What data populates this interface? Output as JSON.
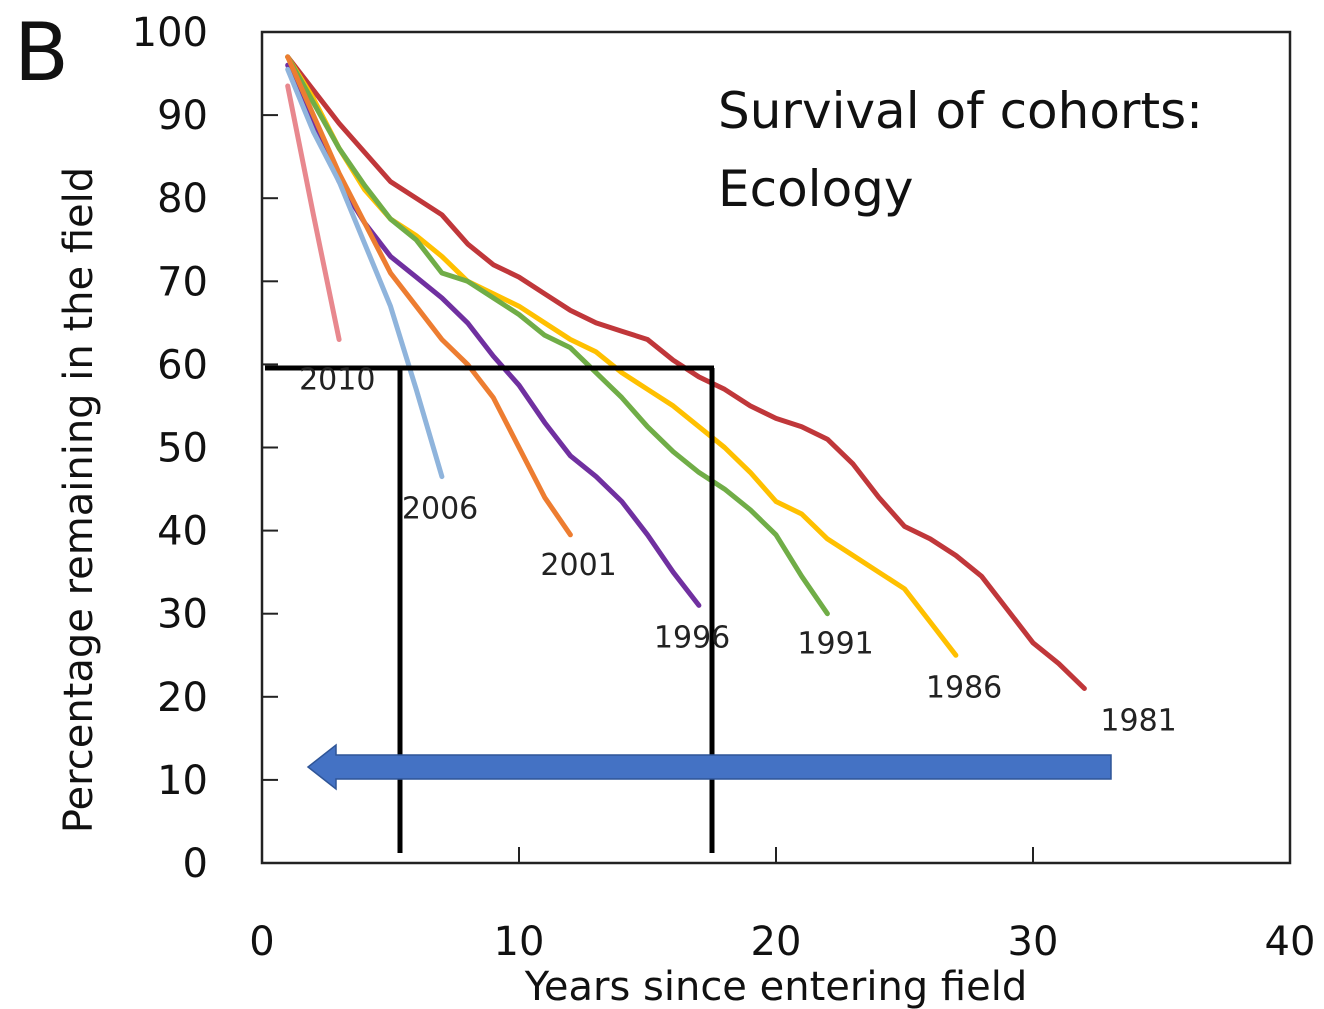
{
  "chart_data": {
    "type": "line",
    "panel_label": "B",
    "title": [
      "Survival of cohorts:",
      "Ecology"
    ],
    "xlabel": "Years since entering field",
    "ylabel": "Percentage remaining in the field",
    "xlim": [
      0,
      40
    ],
    "xticks": [
      0,
      10,
      20,
      30,
      40
    ],
    "ylim": [
      0,
      100
    ],
    "yticks": [
      0,
      10,
      20,
      30,
      40,
      50,
      60,
      70,
      80,
      90,
      100
    ],
    "grid": false,
    "series": [
      {
        "name": "1981",
        "color": "#c0373a",
        "x": [
          1,
          2,
          3,
          4,
          5,
          6,
          7,
          8,
          9,
          10,
          11,
          12,
          13,
          14,
          15,
          16,
          17,
          18,
          19,
          20,
          21,
          22,
          23,
          24,
          25,
          26,
          27,
          28,
          29,
          30,
          31,
          32
        ],
        "values": [
          97,
          93,
          89,
          85.5,
          82,
          80,
          78,
          74.5,
          72,
          70.5,
          68.5,
          66.5,
          65,
          64,
          63,
          60.5,
          58.5,
          57,
          55,
          53.5,
          52.5,
          51,
          48,
          44,
          40.5,
          39,
          37,
          34.5,
          30.5,
          26.5,
          24,
          21
        ]
      },
      {
        "name": "1986",
        "color": "#ffc000",
        "x": [
          1,
          2,
          3,
          4,
          5,
          6,
          7,
          8,
          9,
          10,
          11,
          12,
          13,
          14,
          15,
          16,
          17,
          18,
          19,
          20,
          21,
          22,
          23,
          24,
          25,
          26,
          27
        ],
        "values": [
          97,
          92,
          86,
          81,
          77.5,
          75.5,
          73,
          70,
          68.5,
          67,
          65,
          63,
          61.5,
          59,
          57,
          55,
          52.5,
          50,
          47,
          43.5,
          42,
          39,
          37,
          35,
          33,
          29,
          25
        ]
      },
      {
        "name": "1991",
        "color": "#70ad47",
        "x": [
          1,
          2,
          3,
          4,
          5,
          6,
          7,
          8,
          9,
          10,
          11,
          12,
          13,
          14,
          15,
          16,
          17,
          18,
          19,
          20,
          21,
          22
        ],
        "values": [
          97,
          91.5,
          86,
          81.5,
          77.5,
          75,
          71,
          70,
          68,
          66,
          63.5,
          62,
          59,
          56,
          52.5,
          49.5,
          47,
          45,
          42.5,
          39.5,
          34.5,
          30
        ]
      },
      {
        "name": "1996",
        "color": "#7030a0",
        "x": [
          1,
          2,
          3,
          4,
          5,
          6,
          7,
          8,
          9,
          10,
          11,
          12,
          13,
          14,
          15,
          16,
          17
        ],
        "values": [
          96,
          89,
          82,
          77,
          73,
          70.5,
          68,
          65,
          61,
          57.5,
          53,
          49,
          46.5,
          43.5,
          39.5,
          35,
          31
        ]
      },
      {
        "name": "2001",
        "color": "#ed7d31",
        "x": [
          1,
          2,
          3,
          4,
          5,
          6,
          7,
          8,
          9,
          10,
          11,
          12
        ],
        "values": [
          97,
          90,
          83,
          77,
          71,
          67,
          63,
          60,
          56,
          50,
          44,
          39.5
        ]
      },
      {
        "name": "2006",
        "color": "#8fb4dc",
        "x": [
          1,
          2,
          3,
          4,
          5,
          6,
          7
        ],
        "values": [
          95.5,
          88,
          82,
          74.5,
          67,
          57,
          46.5
        ]
      },
      {
        "name": "2010",
        "color": "#e8888e",
        "x": [
          1,
          2,
          3
        ],
        "values": [
          93.5,
          78,
          63
        ]
      }
    ]
  }
}
